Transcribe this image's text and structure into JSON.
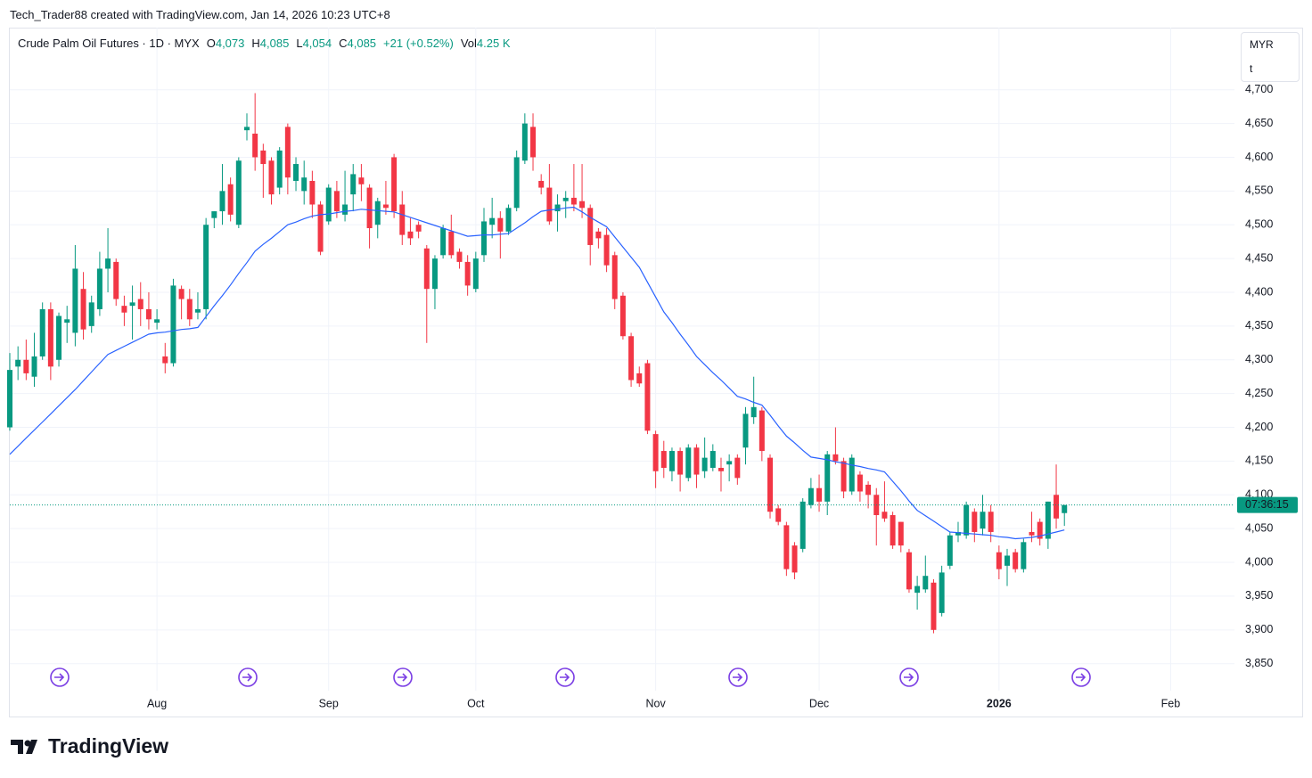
{
  "header": {
    "credit": "Tech_Trader88 created with TradingView.com, Jan 14, 2026 10:23 UTC+8"
  },
  "legend": {
    "symbol": "Crude Palm Oil Futures · 1D · MYX",
    "o_label": "O",
    "o": "4,073",
    "h_label": "H",
    "h": "4,085",
    "l_label": "L",
    "l": "4,054",
    "c_label": "C",
    "c": "4,085",
    "change": "+21 (+0.52%)",
    "vol_label": "Vol",
    "vol": "4.25 K"
  },
  "currency": {
    "code": "MYR",
    "unit": "t"
  },
  "logo": "TradingView",
  "chart_data": {
    "type": "candlestick",
    "up_color": "#089981",
    "down_color": "#f23645",
    "ma_color": "#2962ff",
    "ylim": [
      3810,
      4792
    ],
    "xlim": [
      0,
      149.8
    ],
    "yticks": [
      {
        "value": 3850,
        "label": "3,850"
      },
      {
        "value": 3900,
        "label": "3,900"
      },
      {
        "value": 3950,
        "label": "3,950"
      },
      {
        "value": 4000,
        "label": "4,000"
      },
      {
        "value": 4050,
        "label": "4,050"
      },
      {
        "value": 4100,
        "label": "4,100"
      },
      {
        "value": 4150,
        "label": "4,150"
      },
      {
        "value": 4200,
        "label": "4,200"
      },
      {
        "value": 4250,
        "label": "4,250"
      },
      {
        "value": 4300,
        "label": "4,300"
      },
      {
        "value": 4350,
        "label": "4,350"
      },
      {
        "value": 4400,
        "label": "4,400"
      },
      {
        "value": 4450,
        "label": "4,450"
      },
      {
        "value": 4500,
        "label": "4,500"
      },
      {
        "value": 4550,
        "label": "4,550"
      },
      {
        "value": 4600,
        "label": "4,600"
      },
      {
        "value": 4650,
        "label": "4,650"
      },
      {
        "value": 4700,
        "label": "4,700"
      }
    ],
    "xticks": [
      {
        "value": 18,
        "label": "Aug"
      },
      {
        "value": 39,
        "label": "Sep"
      },
      {
        "value": 57,
        "label": "Oct"
      },
      {
        "value": 79,
        "label": "Nov"
      },
      {
        "value": 99,
        "label": "Dec"
      },
      {
        "value": 121,
        "label": "2026"
      },
      {
        "value": 142,
        "label": "Feb"
      }
    ],
    "last_price": 4085,
    "countdown": "07:36:15",
    "open": [
      4200,
      4290,
      4300,
      4275,
      4305,
      4375,
      4300,
      4355,
      4340,
      4405,
      4350,
      4375,
      4435,
      4445,
      4380,
      4380,
      4390,
      4375,
      4355,
      4305,
      4295,
      4405,
      4390,
      4370,
      4375,
      4510,
      4520,
      4560,
      4500,
      4640,
      4635,
      4610,
      4595,
      4555,
      4645,
      4565,
      4550,
      4565,
      4530,
      4505,
      4550,
      4515,
      4545,
      4570,
      4555,
      4500,
      4530,
      4600,
      4530,
      4490,
      4500,
      4465,
      4405,
      4455,
      4490,
      4460,
      4445,
      4405,
      4455,
      4500,
      4510,
      4490,
      4525,
      4595,
      4645,
      4565,
      4555,
      4520,
      4535,
      4540,
      4535,
      4525,
      4490,
      4485,
      4455,
      4395,
      4335,
      4280,
      4295,
      4190,
      4165,
      4135,
      4165,
      4125,
      4170,
      4135,
      4140,
      4140,
      4145,
      4155,
      4170,
      4215,
      4225,
      4155,
      4080,
      4055,
      4025,
      4020,
      4085,
      4110,
      4090,
      4160,
      4150,
      4105,
      4130,
      4115,
      4100,
      4075,
      4070,
      4060,
      4015,
      3955,
      3960,
      3970,
      3925,
      3995,
      4040,
      4040,
      4075,
      4050,
      4075,
      4015,
      3995,
      4015,
      3990,
      4045,
      4060,
      4035,
      4100,
      4073
    ],
    "high": [
      4310,
      4320,
      4330,
      4340,
      4385,
      4385,
      4370,
      4380,
      4470,
      4430,
      4395,
      4460,
      4495,
      4450,
      4395,
      4410,
      4415,
      4400,
      4375,
      4325,
      4420,
      4410,
      4405,
      4400,
      4510,
      4520,
      4590,
      4570,
      4600,
      4665,
      4695,
      4620,
      4600,
      4615,
      4650,
      4600,
      4595,
      4580,
      4535,
      4560,
      4565,
      4580,
      4590,
      4590,
      4560,
      4540,
      4565,
      4605,
      4550,
      4510,
      4505,
      4470,
      4455,
      4500,
      4515,
      4465,
      4455,
      4460,
      4525,
      4540,
      4520,
      4530,
      4610,
      4665,
      4665,
      4575,
      4590,
      4545,
      4550,
      4590,
      4590,
      4530,
      4495,
      4495,
      4460,
      4400,
      4340,
      4290,
      4300,
      4195,
      4180,
      4170,
      4170,
      4175,
      4175,
      4185,
      4175,
      4155,
      4160,
      4160,
      4230,
      4275,
      4230,
      4160,
      4085,
      4060,
      4030,
      4095,
      4125,
      4130,
      4165,
      4200,
      4155,
      4160,
      4135,
      4120,
      4110,
      4120,
      4075,
      4060,
      4020,
      3980,
      4010,
      3975,
      3995,
      4045,
      4060,
      4090,
      4080,
      4100,
      4085,
      4025,
      4020,
      4020,
      4035,
      4075,
      4065,
      4090,
      4145,
      4085
    ],
    "low": [
      4195,
      4270,
      4270,
      4260,
      4300,
      4270,
      4290,
      4325,
      4320,
      4330,
      4340,
      4365,
      4400,
      4380,
      4350,
      4330,
      4350,
      4345,
      4345,
      4280,
      4290,
      4360,
      4350,
      4360,
      4360,
      4495,
      4500,
      4505,
      4495,
      4625,
      4580,
      4540,
      4530,
      4545,
      4545,
      4550,
      4530,
      4510,
      4455,
      4500,
      4510,
      4505,
      4520,
      4535,
      4465,
      4480,
      4515,
      4510,
      4470,
      4470,
      4480,
      4325,
      4375,
      4450,
      4450,
      4435,
      4395,
      4400,
      4445,
      4480,
      4450,
      4485,
      4520,
      4590,
      4580,
      4545,
      4500,
      4490,
      4510,
      4520,
      4510,
      4440,
      4465,
      4430,
      4375,
      4330,
      4260,
      4260,
      4190,
      4110,
      4125,
      4120,
      4105,
      4120,
      4110,
      4125,
      4135,
      4105,
      4120,
      4115,
      4145,
      4205,
      4150,
      4065,
      4055,
      3980,
      3975,
      4015,
      4080,
      4075,
      4070,
      4145,
      4095,
      4100,
      4090,
      4080,
      4025,
      4060,
      4020,
      4015,
      3955,
      3930,
      3955,
      3895,
      3920,
      3990,
      4030,
      4035,
      4030,
      4040,
      4030,
      3975,
      3965,
      3985,
      3985,
      4030,
      4025,
      4020,
      4050,
      4054
    ],
    "close": [
      4285,
      4300,
      4280,
      4305,
      4375,
      4290,
      4365,
      4360,
      4435,
      4345,
      4385,
      4435,
      4450,
      4390,
      4370,
      4385,
      4375,
      4360,
      4360,
      4295,
      4410,
      4390,
      4360,
      4375,
      4500,
      4520,
      4550,
      4515,
      4595,
      4645,
      4600,
      4590,
      4545,
      4610,
      4570,
      4590,
      4570,
      4530,
      4460,
      4555,
      4520,
      4530,
      4575,
      4560,
      4495,
      4535,
      4525,
      4520,
      4485,
      4480,
      4490,
      4405,
      4450,
      4495,
      4455,
      4445,
      4410,
      4450,
      4505,
      4510,
      4490,
      4525,
      4600,
      4650,
      4600,
      4555,
      4505,
      4530,
      4540,
      4530,
      4525,
      4470,
      4480,
      4440,
      4390,
      4335,
      4270,
      4265,
      4195,
      4135,
      4140,
      4165,
      4130,
      4170,
      4130,
      4155,
      4165,
      4135,
      4150,
      4125,
      4220,
      4230,
      4165,
      4075,
      4060,
      3990,
      3985,
      4090,
      4110,
      4090,
      4160,
      4150,
      4105,
      4155,
      4105,
      4100,
      4070,
      4065,
      4025,
      4025,
      3960,
      3965,
      3980,
      3900,
      3985,
      4040,
      4045,
      4085,
      4045,
      4075,
      4045,
      3990,
      4010,
      3990,
      4030,
      4040,
      4035,
      4090,
      4065,
      4085
    ],
    "ma": [
      4160,
      4172,
      4184,
      4196,
      4208,
      4220,
      4232,
      4244,
      4256,
      4269,
      4282,
      4295,
      4308,
      4314,
      4320,
      4326,
      4332,
      4338,
      4340,
      4341,
      4343,
      4345,
      4346,
      4348,
      4364,
      4380,
      4395,
      4411,
      4428,
      4444,
      4461,
      4471,
      4480,
      4490,
      4500,
      4504,
      4509,
      4513,
      4515,
      4516,
      4518,
      4520,
      4521,
      4523,
      4522,
      4521,
      4520,
      4519,
      4515,
      4511,
      4507,
      4503,
      4499,
      4495,
      4491,
      4487,
      4483,
      4484,
      4485,
      4485,
      4486,
      4487,
      4495,
      4503,
      4512,
      4520,
      4522,
      4523,
      4525,
      4526,
      4519,
      4511,
      4504,
      4497,
      4482,
      4467,
      4452,
      4437,
      4415,
      4393,
      4371,
      4355,
      4338,
      4322,
      4305,
      4293,
      4281,
      4270,
      4258,
      4246,
      4242,
      4237,
      4233,
      4218,
      4202,
      4187,
      4177,
      4166,
      4156,
      4154,
      4152,
      4149,
      4147,
      4144,
      4142,
      4139,
      4137,
      4134,
      4120,
      4106,
      4091,
      4077,
      4069,
      4061,
      4053,
      4045,
      4044,
      4043,
      4042,
      4041,
      4040,
      4038,
      4037,
      4035,
      4036,
      4037,
      4039,
      4042,
      4045,
      4048
    ]
  }
}
